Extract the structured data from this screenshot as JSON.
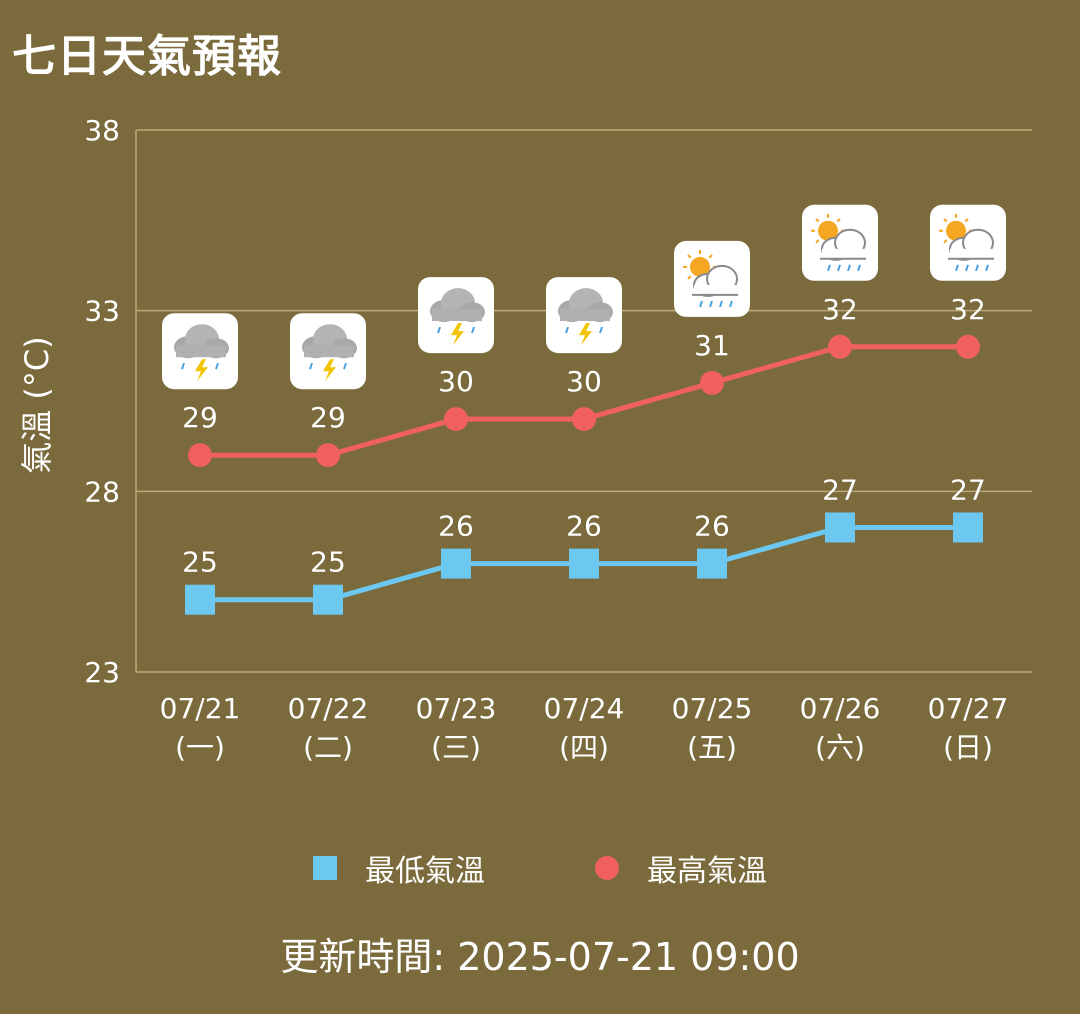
{
  "page_title": "七日天氣預報",
  "updated": "更新時間: 2025-07-21 09:00",
  "colors": {
    "background": "#7b6a3c",
    "min_series": "#6cc8f0",
    "max_series": "#f06060",
    "gridline": "#bda97a"
  },
  "chart_data": {
    "type": "line",
    "title": "七日天氣預報",
    "ylabel": "氣溫 (°C)",
    "ylim": [
      23,
      38
    ],
    "yticks": [
      23,
      28,
      33,
      38
    ],
    "grid": true,
    "legend_position": "bottom",
    "categories": [
      "07/21",
      "07/22",
      "07/23",
      "07/24",
      "07/25",
      "07/26",
      "07/27"
    ],
    "weekdays": [
      "(一)",
      "(二)",
      "(三)",
      "(四)",
      "(五)",
      "(六)",
      "(日)"
    ],
    "weather_icons": [
      "thunderstorm-icon",
      "thunderstorm-icon",
      "thunderstorm-icon",
      "thunderstorm-icon",
      "sun-cloud-rain-icon",
      "sun-cloud-rain-icon",
      "sun-cloud-rain-icon"
    ],
    "series": [
      {
        "name": "最低氣溫",
        "marker": "square",
        "values": [
          25,
          25,
          26,
          26,
          26,
          27,
          27
        ]
      },
      {
        "name": "最高氣溫",
        "marker": "circle",
        "values": [
          29,
          29,
          30,
          30,
          31,
          32,
          32
        ]
      }
    ]
  }
}
